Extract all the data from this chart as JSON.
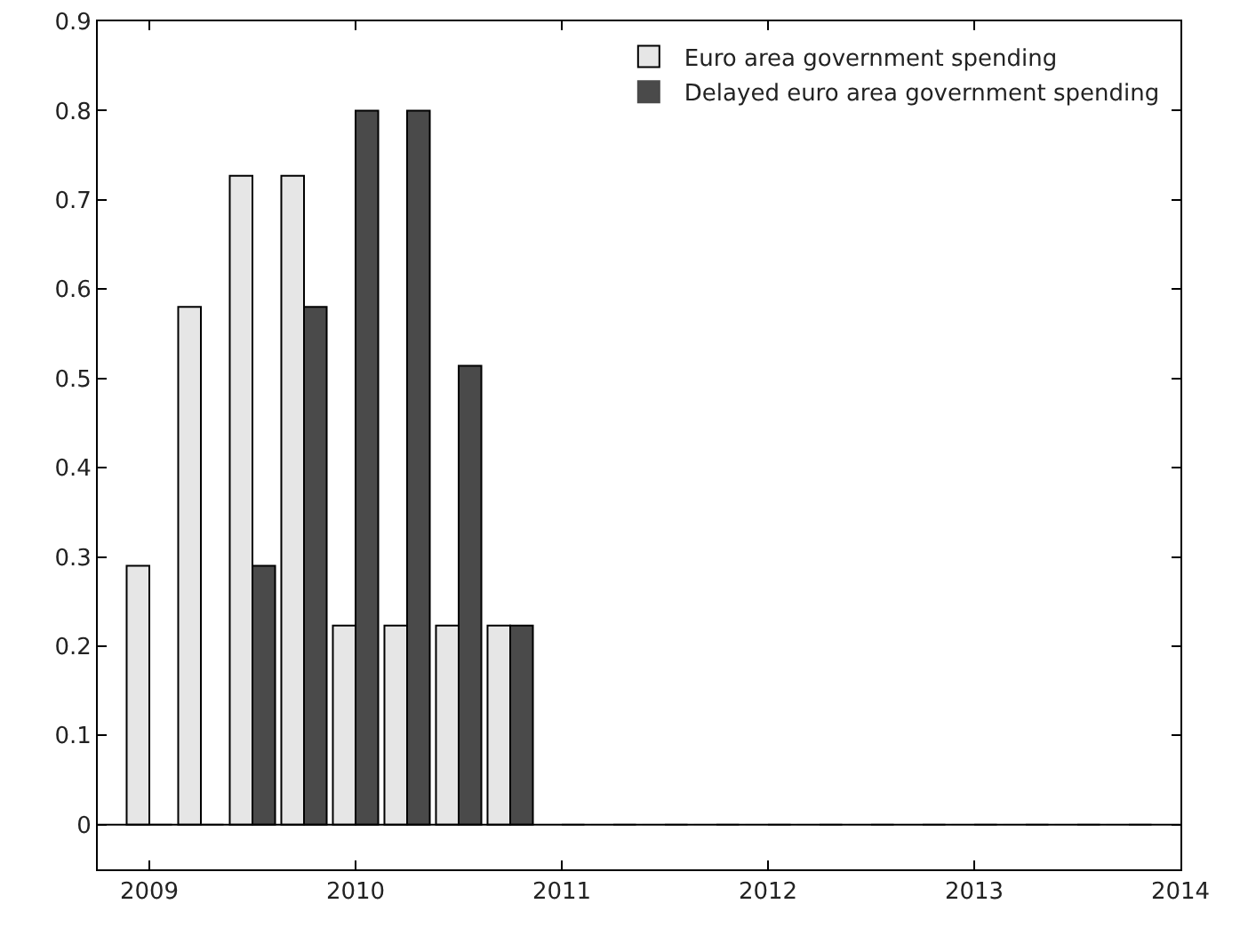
{
  "chart_data": {
    "type": "bar",
    "x": [
      2009,
      2009.25,
      2009.5,
      2009.75,
      2010,
      2010.25,
      2010.5,
      2010.75,
      2011,
      2011.25,
      2011.5,
      2011.75,
      2012,
      2012.25,
      2012.5,
      2012.75,
      2013,
      2013.25,
      2013.5,
      2013.75
    ],
    "series": [
      {
        "name": "Euro area government spending",
        "color": "#e6e6e6",
        "values": [
          0.29,
          0.58,
          0.727,
          0.727,
          0.223,
          0.223,
          0.223,
          0.223,
          0,
          0,
          0,
          0,
          0,
          0,
          0,
          0,
          0,
          0,
          0,
          0
        ]
      },
      {
        "name": "Delayed euro area government spending",
        "color": "#4a4a4a",
        "values": [
          0,
          0,
          0.29,
          0.58,
          0.8,
          0.8,
          0.514,
          0.223,
          0,
          0,
          0,
          0,
          0,
          0,
          0,
          0,
          0,
          0,
          0,
          0
        ]
      }
    ],
    "xlim": [
      2008.75,
      2014
    ],
    "xticks": [
      2009,
      2010,
      2011,
      2012,
      2013,
      2014
    ],
    "ylim": [
      -0.05,
      0.9
    ],
    "yticks": [
      0,
      0.1,
      0.2,
      0.3,
      0.4,
      0.5,
      0.6,
      0.7,
      0.8,
      0.9
    ],
    "ref_lines": [
      {
        "axis": "y",
        "value": 0,
        "color": "#000000"
      }
    ],
    "grid": false,
    "legend": "top right"
  }
}
